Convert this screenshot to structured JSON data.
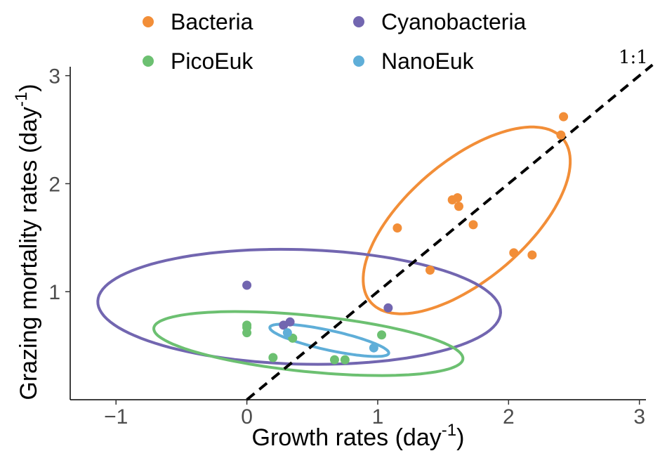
{
  "chart_data": {
    "type": "scatter",
    "xlabel": "Growth rates (day",
    "xlabel_sup": "-1",
    "xlabel_end": ")",
    "ylabel": "Grazing mortality rates (day",
    "ylabel_sup": "-1",
    "ylabel_end": ")",
    "xlim": [
      -1.35,
      3.05
    ],
    "ylim": [
      0.0,
      3.05
    ],
    "x_ticks": [
      -1,
      0,
      1,
      2,
      3
    ],
    "x_tick_labels": [
      "−1",
      "0",
      "1",
      "2",
      "3"
    ],
    "y_ticks": [
      1,
      2,
      3
    ],
    "y_tick_labels": [
      "1",
      "2",
      "3"
    ],
    "grid": false,
    "legend_position": "top",
    "reference_line": {
      "label": "1:1",
      "slope": 1,
      "intercept": 0,
      "style": "dashed",
      "color": "#000000"
    },
    "series": [
      {
        "name": "Bacteria",
        "color": "#F28E38",
        "points": [
          [
            2.42,
            2.62
          ],
          [
            2.4,
            2.45
          ],
          [
            1.57,
            1.85
          ],
          [
            1.61,
            1.87
          ],
          [
            1.62,
            1.79
          ],
          [
            1.73,
            1.62
          ],
          [
            1.15,
            1.59
          ],
          [
            1.4,
            1.2
          ],
          [
            2.04,
            1.36
          ],
          [
            2.18,
            1.34
          ]
        ],
        "ellipse": {
          "cx": 1.68,
          "cy": 1.66,
          "rx": 1.06,
          "ry": 0.5,
          "angle_deg": 49
        }
      },
      {
        "name": "Cyanobacteria",
        "color": "#7266B0",
        "points": [
          [
            0.0,
            1.06
          ],
          [
            1.08,
            0.85
          ],
          [
            0.28,
            0.69
          ],
          [
            0.33,
            0.72
          ]
        ],
        "ellipse": {
          "cx": 0.4,
          "cy": 0.86,
          "rx": 1.54,
          "ry": 0.53,
          "angle_deg": -2
        }
      },
      {
        "name": "PicoEuk",
        "color": "#6CC071",
        "points": [
          [
            0.0,
            0.69
          ],
          [
            0.0,
            0.67
          ],
          [
            0.0,
            0.62
          ],
          [
            0.35,
            0.57
          ],
          [
            0.2,
            0.39
          ],
          [
            0.67,
            0.37
          ],
          [
            0.75,
            0.37
          ],
          [
            1.03,
            0.6
          ]
        ],
        "ellipse": {
          "cx": 0.47,
          "cy": 0.52,
          "rx": 1.19,
          "ry": 0.26,
          "angle_deg": -7
        }
      },
      {
        "name": "NanoEuk",
        "color": "#5FAED8",
        "points": [
          [
            0.31,
            0.62
          ],
          [
            0.97,
            0.48
          ]
        ],
        "ellipse": {
          "cx": 0.63,
          "cy": 0.55,
          "rx": 0.47,
          "ry": 0.09,
          "angle_deg": -15
        }
      }
    ]
  }
}
